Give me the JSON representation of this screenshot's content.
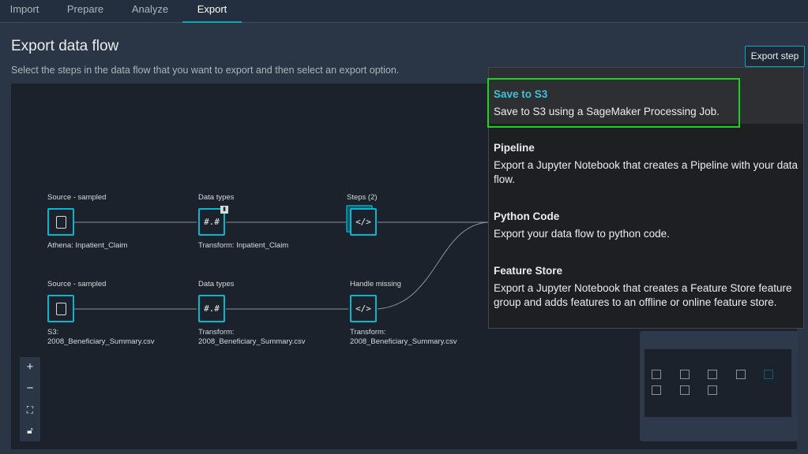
{
  "tabs": [
    {
      "label": "Import"
    },
    {
      "label": "Prepare"
    },
    {
      "label": "Analyze"
    },
    {
      "label": "Export",
      "active": true
    }
  ],
  "page": {
    "title": "Export data flow",
    "subtitle": "Select the steps in the data flow that you want to export and then select an export option.",
    "export_button": "Export step"
  },
  "flow": {
    "row1": [
      {
        "top": "Source - sampled",
        "bottom": "Athena: Inpatient_Claim",
        "icon": "file-icon"
      },
      {
        "top": "Data types",
        "bottom": "Transform: Inpatient_Claim",
        "icon": "#.#"
      },
      {
        "top": "Steps (2)",
        "bottom": "",
        "icon": "</>"
      }
    ],
    "row2": [
      {
        "top": "Source - sampled",
        "bottom": "S3:",
        "bottom2": "2008_Beneficiary_Summary.csv",
        "icon": "file-icon"
      },
      {
        "top": "Data types",
        "bottom": "Transform:",
        "bottom2": "2008_Beneficiary_Summary.csv",
        "icon": "#.#"
      },
      {
        "top": "Handle missing",
        "bottom": "Transform:",
        "bottom2": "2008_Beneficiary_Summary.csv",
        "icon": "</>"
      }
    ]
  },
  "zoom_controls": {
    "plus": "+",
    "minus": "−"
  },
  "export_options": [
    {
      "title": "Save to S3",
      "desc": "Save to S3 using a SageMaker Processing Job."
    },
    {
      "title": "Pipeline",
      "desc": "Export a Jupyter Notebook that creates a Pipeline with your data flow."
    },
    {
      "title": "Python Code",
      "desc": "Export your data flow to python code."
    },
    {
      "title": "Feature Store",
      "desc": "Export a Jupyter Notebook that creates a Feature Store feature group and adds features to an offline or online feature store."
    }
  ],
  "colors": {
    "accent": "#0bb5cc",
    "highlight_border": "#1fd21f",
    "selected_title": "#3fc2d8"
  }
}
